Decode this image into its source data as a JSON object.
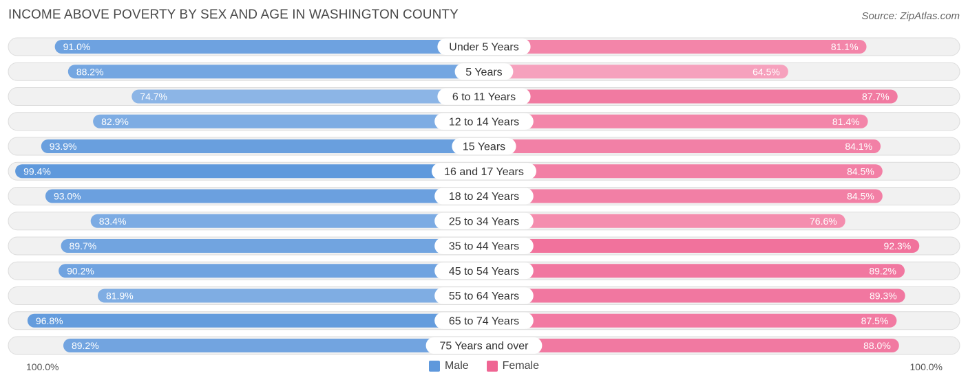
{
  "title": "INCOME ABOVE POVERTY BY SEX AND AGE IN WASHINGTON COUNTY",
  "source": "Source: ZipAtlas.com",
  "colors": {
    "male_light": "#a7c6ec",
    "male_dark": "#5e98dc",
    "female_light": "#f7a9c2",
    "female_dark": "#ef6593",
    "track": "#f1f1f1",
    "track_border": "#dcdcdc"
  },
  "chart_data": {
    "type": "bar",
    "orientation": "horizontal-diverging",
    "title": "INCOME ABOVE POVERTY BY SEX AND AGE IN WASHINGTON COUNTY",
    "categories": [
      "Under 5 Years",
      "5 Years",
      "6 to 11 Years",
      "12 to 14 Years",
      "15 Years",
      "16 and 17 Years",
      "18 to 24 Years",
      "25 to 34 Years",
      "35 to 44 Years",
      "45 to 54 Years",
      "55 to 64 Years",
      "65 to 74 Years",
      "75 Years and over"
    ],
    "series": [
      {
        "name": "Male",
        "values": [
          91.0,
          88.2,
          74.7,
          82.9,
          93.9,
          99.4,
          93.0,
          83.4,
          89.7,
          90.2,
          81.9,
          96.8,
          89.2
        ],
        "labels": [
          "91.0%",
          "88.2%",
          "74.7%",
          "82.9%",
          "93.9%",
          "99.4%",
          "93.0%",
          "83.4%",
          "89.7%",
          "90.2%",
          "81.9%",
          "96.8%",
          "89.2%"
        ]
      },
      {
        "name": "Female",
        "values": [
          81.1,
          64.5,
          87.7,
          81.4,
          84.1,
          84.5,
          84.5,
          76.6,
          92.3,
          89.2,
          89.3,
          87.5,
          88.0
        ],
        "labels": [
          "81.1%",
          "64.5%",
          "87.7%",
          "81.4%",
          "84.1%",
          "84.5%",
          "84.5%",
          "76.6%",
          "92.3%",
          "89.2%",
          "89.3%",
          "87.5%",
          "88.0%"
        ]
      }
    ],
    "xlim": [
      0,
      100
    ],
    "axis_left_label": "100.0%",
    "axis_right_label": "100.0%",
    "legend_position": "bottom-center"
  }
}
